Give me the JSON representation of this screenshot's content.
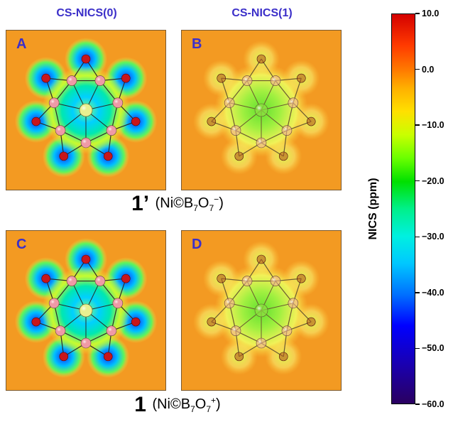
{
  "columns": [
    "CS-NICS(0)",
    "CS-NICS(1)"
  ],
  "panels": [
    {
      "label": "A",
      "type": "nics0"
    },
    {
      "label": "B",
      "type": "nics1"
    },
    {
      "label": "C",
      "type": "nics0"
    },
    {
      "label": "D",
      "type": "nics1"
    }
  ],
  "captions": [
    {
      "number": "1’",
      "formula_prefix": "(Ni©B",
      "formula_sub1": "7",
      "formula_mid": "O",
      "formula_sub2": "7",
      "formula_charge": "−",
      "formula_suffix": ")"
    },
    {
      "number": "1",
      "formula_prefix": "(Ni©B",
      "formula_sub1": "7",
      "formula_mid": "O",
      "formula_sub2": "7",
      "formula_charge": "+",
      "formula_suffix": ")"
    }
  ],
  "colorbar": {
    "title": "NICS (ppm)",
    "range": [
      -60.0,
      10.0
    ],
    "ticks": [
      "10.0",
      "0.0",
      "−10.0",
      "−20.0",
      "−30.0",
      "−40.0",
      "−50.0",
      "−60.0"
    ],
    "tick_values": [
      10,
      0,
      -10,
      -20,
      -30,
      -40,
      -50,
      -60
    ]
  },
  "colors": {
    "background_map": "#f39a22",
    "boron_atom": "#ef9aa6",
    "oxygen_atom": "#c8141c",
    "nickel_atom": "#e8f090",
    "label_blue": "#3b2fc9"
  }
}
